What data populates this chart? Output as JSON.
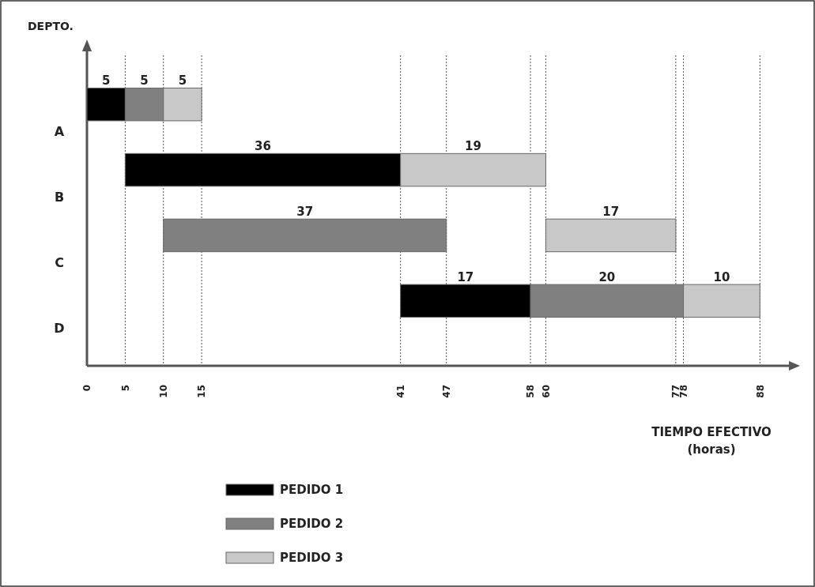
{
  "chart_data": {
    "type": "bar",
    "orientation": "horizontal",
    "categories": [
      "A",
      "B",
      "C",
      "D"
    ],
    "series": [
      {
        "name": "PEDIDO 1",
        "color": "#000000",
        "values": [
          5,
          36,
          null,
          17
        ],
        "base": [
          0,
          5,
          null,
          41
        ]
      },
      {
        "name": "PEDIDO 2",
        "color": "#808080",
        "values": [
          5,
          null,
          37,
          20
        ],
        "base": [
          5,
          null,
          10,
          58
        ]
      },
      {
        "name": "PEDIDO 3",
        "color": "#c8c8c8",
        "values": [
          5,
          19,
          17,
          10
        ],
        "base": [
          10,
          41,
          60,
          78
        ]
      }
    ],
    "xlim": [
      0,
      92
    ],
    "xticks": [
      0,
      5,
      10,
      15,
      41,
      47,
      58,
      60,
      77,
      78,
      88
    ],
    "xlabel": "TIEMPO EFECTIVO\n(horas)",
    "ylabel": "DEPTO.",
    "data_labels": true,
    "grid": "x",
    "legend": "bottom"
  }
}
